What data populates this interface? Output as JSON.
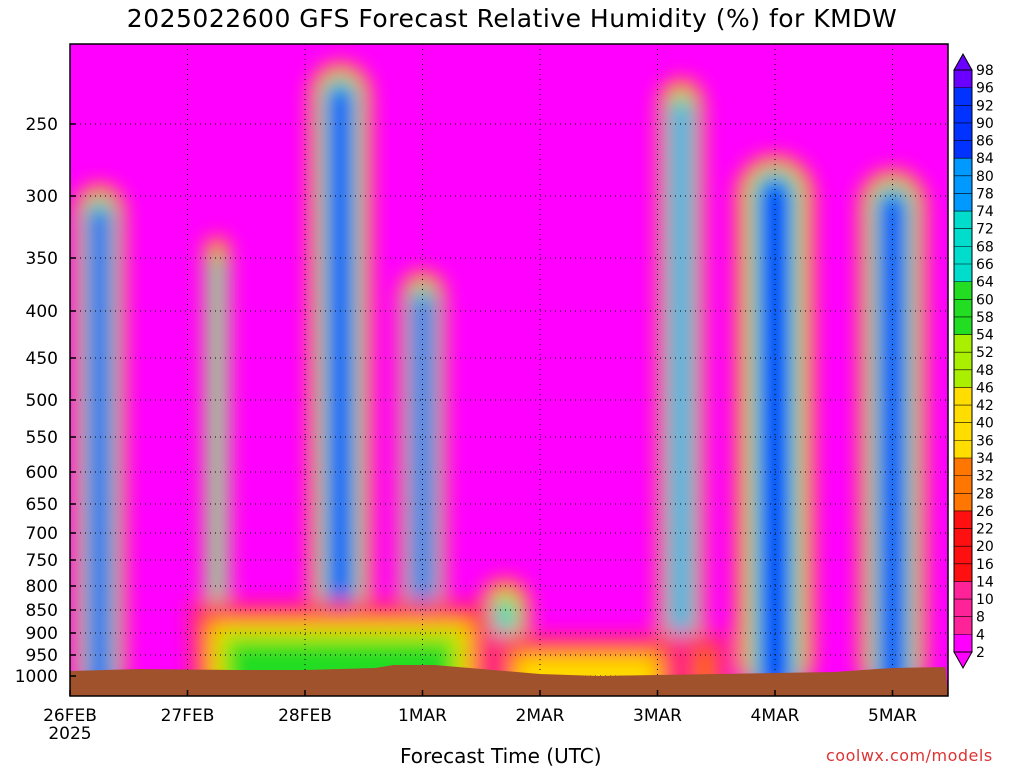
{
  "chart_data": {
    "type": "heatmap",
    "title": "2025022600 GFS Forecast Relative Humidity (%) for KMDW",
    "xlabel": "Forecast Time (UTC)",
    "ylabel": "",
    "x_ticks": [
      "26FEB",
      "27FEB",
      "28FEB",
      "1MAR",
      "2MAR",
      "3MAR",
      "4MAR",
      "5MAR"
    ],
    "x_year": "2025",
    "y_ticks": [
      250,
      300,
      350,
      400,
      450,
      500,
      550,
      600,
      650,
      700,
      750,
      800,
      850,
      900,
      950,
      1000
    ],
    "ylim": [
      1000,
      200
    ],
    "xlim_days": [
      0,
      7.45
    ],
    "grid": true,
    "colorbar_labels": [
      98,
      96,
      92,
      90,
      86,
      84,
      80,
      78,
      74,
      72,
      68,
      66,
      64,
      60,
      58,
      54,
      52,
      48,
      46,
      42,
      40,
      36,
      34,
      32,
      28,
      26,
      22,
      20,
      16,
      14,
      10,
      8,
      4,
      2
    ],
    "colors": [
      "#ff00ff",
      "#ff2299",
      "#ff1010",
      "#ff7700",
      "#ffdd00",
      "#aaee00",
      "#22dd22",
      "#00ddcc",
      "#0099ff",
      "#0033ff",
      "#6a00ff"
    ],
    "ground_color": "#a0522d",
    "moisture_columns": [
      {
        "day": 0.25,
        "width": 0.45,
        "top_hpa": 290,
        "bottom_hpa": 1000,
        "rh": 88
      },
      {
        "day": 1.25,
        "width": 0.22,
        "top_hpa": 330,
        "bottom_hpa": 1000,
        "rh": 70
      },
      {
        "day": 2.3,
        "width": 0.55,
        "top_hpa": 210,
        "bottom_hpa": 1000,
        "rh": 86
      },
      {
        "day": 3.0,
        "width": 0.4,
        "top_hpa": 360,
        "bottom_hpa": 1000,
        "rh": 88
      },
      {
        "day": 3.7,
        "width": 0.45,
        "top_hpa": 780,
        "bottom_hpa": 1000,
        "rh": 70
      },
      {
        "day": 5.2,
        "width": 0.4,
        "top_hpa": 220,
        "bottom_hpa": 1000,
        "rh": 78
      },
      {
        "day": 6.0,
        "width": 0.7,
        "top_hpa": 270,
        "bottom_hpa": 1000,
        "rh": 90
      },
      {
        "day": 7.0,
        "width": 0.6,
        "top_hpa": 280,
        "bottom_hpa": 1000,
        "rh": 92
      }
    ]
  },
  "credit": "coolwx.com/models"
}
